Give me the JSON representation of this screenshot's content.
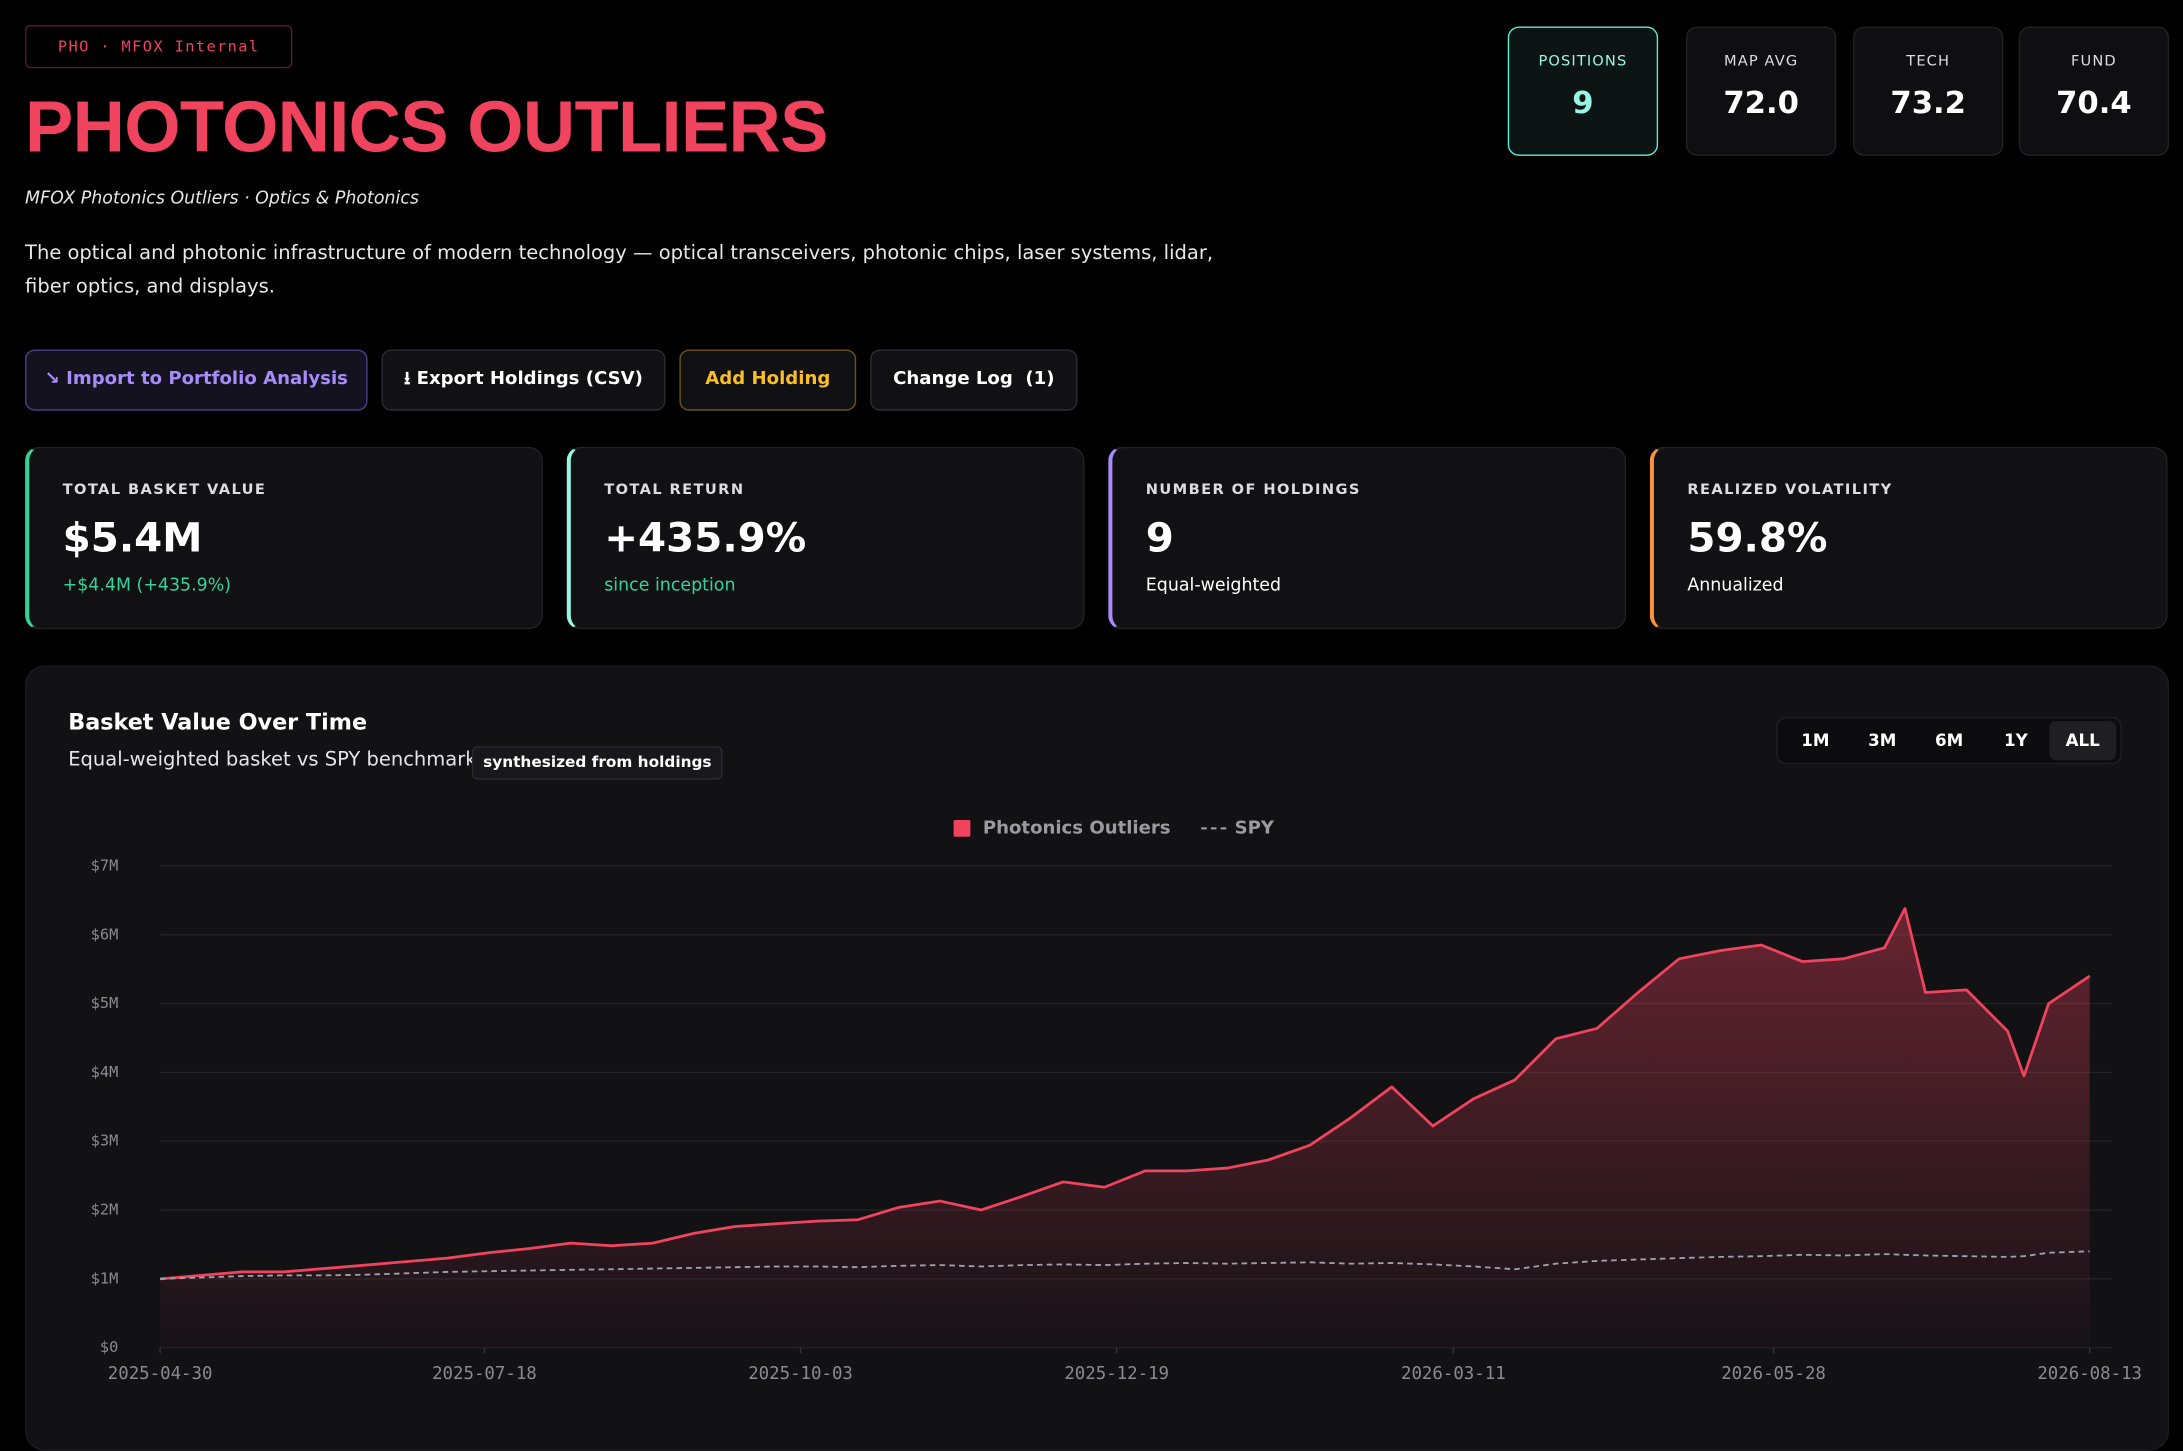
{
  "header": {
    "tag": "PHO · MFOX Internal",
    "title": "PHOTONICS OUTLIERS",
    "subtitle": "MFOX Photonics Outliers · Optics & Photonics",
    "description": "The optical and photonic infrastructure of modern technology — optical transceivers, photonic chips, laser systems, lidar, fiber optics, and displays."
  },
  "actions": [
    "↘ Import to Portfolio Analysis",
    "⭳ Export Holdings (CSV)",
    "Add Holding",
    "Change Log  (1)"
  ],
  "stats": [
    {
      "label": "POSITIONS",
      "value": "9"
    },
    {
      "label": "MAP AVG",
      "value": "72.0"
    },
    {
      "label": "TECH",
      "value": "73.2"
    },
    {
      "label": "FUND",
      "value": "70.4"
    }
  ],
  "metrics": [
    {
      "label": "TOTAL BASKET VALUE",
      "value": "$5.4M",
      "note": "+$4.4M (+435.9%)"
    },
    {
      "label": "TOTAL RETURN",
      "value": "+435.9%",
      "note": "since inception"
    },
    {
      "label": "NUMBER OF HOLDINGS",
      "value": "9",
      "note": "Equal-weighted"
    },
    {
      "label": "REALIZED VOLATILITY",
      "value": "59.8%",
      "note": "Annualized"
    }
  ],
  "chart_data": {
    "type": "line",
    "title": "Basket Value Over Time",
    "subtitle": "Equal-weighted basket vs SPY benchmark",
    "badge": "synthesized from holdings",
    "ranges": [
      "1M",
      "3M",
      "6M",
      "1Y",
      "ALL"
    ],
    "active_range": "ALL",
    "x": [
      "2025-04-30",
      "2025-05-10",
      "2025-05-20",
      "2025-05-30",
      "2025-06-09",
      "2025-06-19",
      "2025-06-29",
      "2025-07-09",
      "2025-07-19",
      "2025-07-29",
      "2025-08-08",
      "2025-08-18",
      "2025-08-28",
      "2025-09-07",
      "2025-09-17",
      "2025-09-27",
      "2025-10-07",
      "2025-10-17",
      "2025-10-27",
      "2025-11-06",
      "2025-11-16",
      "2025-11-26",
      "2025-12-06",
      "2025-12-16",
      "2025-12-26",
      "2026-01-05",
      "2026-01-15",
      "2026-01-25",
      "2026-02-04",
      "2026-02-14",
      "2026-02-24",
      "2026-03-06",
      "2026-03-16",
      "2026-03-26",
      "2026-04-05",
      "2026-04-15",
      "2026-04-25",
      "2026-05-05",
      "2026-05-15",
      "2026-05-25",
      "2026-06-04",
      "2026-06-14",
      "2026-06-24",
      "2026-06-29",
      "2026-07-04",
      "2026-07-14",
      "2026-07-24",
      "2026-07-28",
      "2026-08-03",
      "2026-08-13"
    ],
    "series": [
      {
        "name": "Photonics Outliers",
        "color": "#f0435e",
        "values": [
          1000000,
          1050000,
          1100000,
          1100000,
          1150000,
          1200000,
          1250000,
          1300000,
          1380000,
          1440000,
          1520000,
          1480000,
          1520000,
          1660000,
          1760000,
          1800000,
          1840000,
          1860000,
          2040000,
          2130000,
          2000000,
          2200000,
          2410000,
          2330000,
          2570000,
          2570000,
          2610000,
          2730000,
          2940000,
          3340000,
          3790000,
          3220000,
          3620000,
          3890000,
          4490000,
          4640000,
          5160000,
          5650000,
          5770000,
          5850000,
          5610000,
          5650000,
          5810000,
          6380000,
          5160000,
          5200000,
          4600000,
          3950000,
          5000000,
          5400000
        ]
      },
      {
        "name": "SPY",
        "color": "#a1a1aa",
        "dashed": true,
        "values": [
          1000000,
          1020000,
          1040000,
          1050000,
          1050000,
          1060000,
          1080000,
          1100000,
          1110000,
          1120000,
          1130000,
          1140000,
          1150000,
          1160000,
          1170000,
          1180000,
          1180000,
          1170000,
          1190000,
          1200000,
          1180000,
          1200000,
          1210000,
          1200000,
          1220000,
          1230000,
          1220000,
          1230000,
          1240000,
          1220000,
          1230000,
          1210000,
          1180000,
          1140000,
          1220000,
          1260000,
          1280000,
          1300000,
          1320000,
          1330000,
          1350000,
          1340000,
          1360000,
          1350000,
          1340000,
          1330000,
          1320000,
          1330000,
          1380000,
          1400000
        ]
      }
    ],
    "xlim": [
      "2025-04-30",
      "2026-08-13"
    ],
    "xticks": [
      "2025-04-30",
      "2025-07-18",
      "2025-10-03",
      "2025-12-19",
      "2026-03-11",
      "2026-05-28",
      "2026-08-13"
    ],
    "ylim": [
      0,
      7000000
    ],
    "yticks": [
      {
        "value": 0,
        "label": "$0"
      },
      {
        "value": 1000000,
        "label": "$1M"
      },
      {
        "value": 2000000,
        "label": "$2M"
      },
      {
        "value": 3000000,
        "label": "$3M"
      },
      {
        "value": 4000000,
        "label": "$4M"
      },
      {
        "value": 5000000,
        "label": "$5M"
      },
      {
        "value": 6000000,
        "label": "$6M"
      },
      {
        "value": 7000000,
        "label": "$7M"
      }
    ],
    "grid": true,
    "legend": "top"
  }
}
